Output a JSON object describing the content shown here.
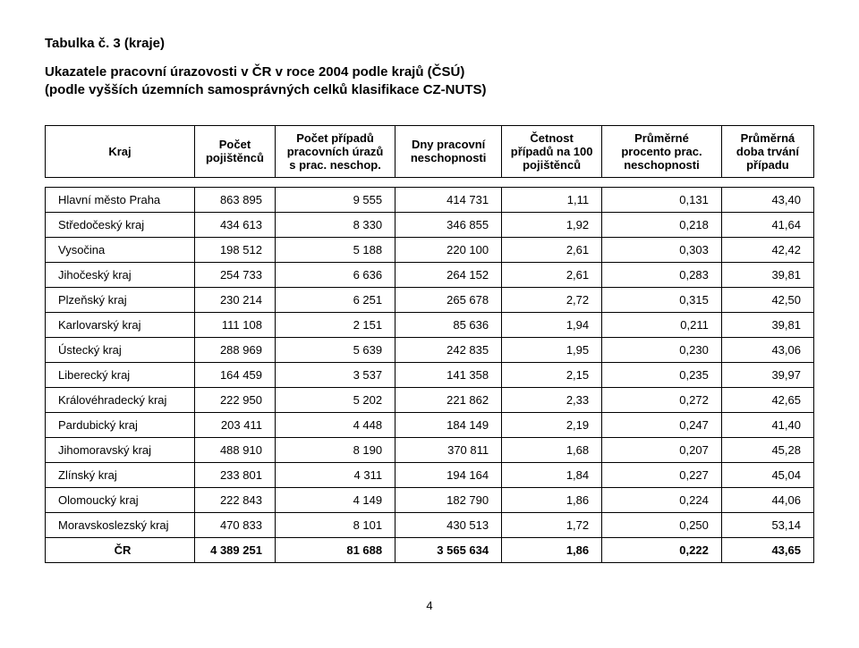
{
  "title_line1": "Tabulka č. 3 (kraje)",
  "title_line2": "Ukazatele pracovní úrazovosti v ČR v roce 2004 podle krajů (ČSÚ)",
  "title_line3": "(podle vyšších územních samosprávných celků klasifikace CZ-NUTS)",
  "page_number": "4",
  "table": {
    "columns": [
      "Kraj",
      "Počet pojištěnců",
      "Počet případů pracovních úrazů s prac. neschop.",
      "Dny pracovní neschopnosti",
      "Četnost případů na 100 pojištěnců",
      "Průměrné procento prac. neschopnosti",
      "Průměrná doba trvání případu"
    ],
    "rows": [
      [
        "Hlavní město Praha",
        "863 895",
        "9 555",
        "414 731",
        "1,11",
        "0,131",
        "43,40"
      ],
      [
        "Středočeský kraj",
        "434 613",
        "8 330",
        "346 855",
        "1,92",
        "0,218",
        "41,64"
      ],
      [
        "Vysočina",
        "198 512",
        "5 188",
        "220 100",
        "2,61",
        "0,303",
        "42,42"
      ],
      [
        "Jihočeský kraj",
        "254 733",
        "6 636",
        "264 152",
        "2,61",
        "0,283",
        "39,81"
      ],
      [
        "Plzeňský kraj",
        "230 214",
        "6 251",
        "265 678",
        "2,72",
        "0,315",
        "42,50"
      ],
      [
        "Karlovarský kraj",
        "111 108",
        "2 151",
        "85 636",
        "1,94",
        "0,211",
        "39,81"
      ],
      [
        "Ústecký kraj",
        "288 969",
        "5 639",
        "242 835",
        "1,95",
        "0,230",
        "43,06"
      ],
      [
        "Liberecký kraj",
        "164 459",
        "3 537",
        "141 358",
        "2,15",
        "0,235",
        "39,97"
      ],
      [
        "Královéhradecký kraj",
        "222 950",
        "5 202",
        "221 862",
        "2,33",
        "0,272",
        "42,65"
      ],
      [
        "Pardubický kraj",
        "203 411",
        "4 448",
        "184 149",
        "2,19",
        "0,247",
        "41,40"
      ],
      [
        "Jihomoravský kraj",
        "488 910",
        "8 190",
        "370 811",
        "1,68",
        "0,207",
        "45,28"
      ],
      [
        "Zlínský kraj",
        "233 801",
        "4 311",
        "194 164",
        "1,84",
        "0,227",
        "45,04"
      ],
      [
        "Olomoucký kraj",
        "222 843",
        "4 149",
        "182 790",
        "1,86",
        "0,224",
        "44,06"
      ],
      [
        "Moravskoslezský kraj",
        "470 833",
        "8 101",
        "430 513",
        "1,72",
        "0,250",
        "53,14"
      ]
    ],
    "footer": [
      "ČR",
      "4 389 251",
      "81 688",
      "3 565 634",
      "1,86",
      "0,222",
      "43,65"
    ],
    "col_align": [
      "left",
      "right",
      "right",
      "right",
      "right",
      "right",
      "right"
    ],
    "border_color": "#000000",
    "background_color": "#ffffff",
    "font_size_pt": 10,
    "header_font_weight": "bold"
  }
}
